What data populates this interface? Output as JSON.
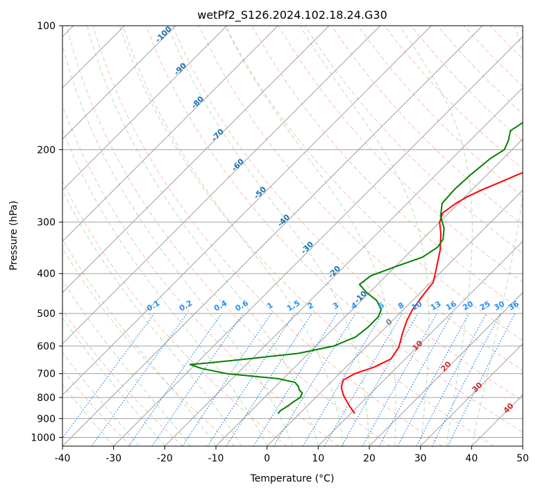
{
  "chart_data": {
    "type": "line",
    "title": "wetPf2_S126.2024.102.18.24.G30",
    "xlabel": "Temperature (°C)",
    "ylabel": "Pressure (hPa)",
    "xlim": [
      -40,
      50
    ],
    "ylim": [
      1050,
      100
    ],
    "y_scale": "log",
    "grid": true,
    "x_ticks": [
      -40,
      -30,
      -20,
      -10,
      0,
      10,
      20,
      30,
      40,
      50
    ],
    "y_ticks": [
      100,
      200,
      300,
      400,
      500,
      600,
      700,
      800,
      900,
      1000
    ],
    "series": [
      {
        "role": "temperature",
        "color": "#ff0000",
        "points": [
          [
            10.8,
            875
          ],
          [
            8.0,
            835
          ],
          [
            5.0,
            790
          ],
          [
            3.0,
            755
          ],
          [
            2.0,
            725
          ],
          [
            3.0,
            700
          ],
          [
            5.5,
            675
          ],
          [
            7.2,
            645
          ],
          [
            6.5,
            605
          ],
          [
            4.5,
            560
          ],
          [
            2.8,
            520
          ],
          [
            1.8,
            490
          ],
          [
            1.0,
            450
          ],
          [
            0.5,
            420
          ],
          [
            -1.5,
            390
          ],
          [
            -4.5,
            350
          ],
          [
            -7.5,
            320
          ],
          [
            -10.0,
            300
          ],
          [
            -11.2,
            285
          ],
          [
            -10.5,
            270
          ],
          [
            -9.5,
            260
          ],
          [
            -8.0,
            250
          ],
          [
            -6.0,
            240
          ],
          [
            -4.0,
            230
          ],
          [
            -1.5,
            220
          ],
          [
            1.0,
            210
          ],
          [
            3.5,
            200
          ],
          [
            6.0,
            190
          ],
          [
            9.5,
            180
          ],
          [
            13.5,
            170
          ],
          [
            16.8,
            160
          ],
          [
            18.5,
            150
          ],
          [
            20.0,
            140
          ],
          [
            21.8,
            130
          ],
          [
            25.0,
            120
          ],
          [
            26.8,
            110
          ],
          [
            28.0,
            100
          ]
        ]
      },
      {
        "role": "dewpoint",
        "color": "#008000",
        "points": [
          [
            -4.2,
            875
          ],
          [
            -4.3,
            860
          ],
          [
            -3.8,
            840
          ],
          [
            -3.5,
            820
          ],
          [
            -3.0,
            800
          ],
          [
            -3.5,
            780
          ],
          [
            -4.8,
            765
          ],
          [
            -5.5,
            752
          ],
          [
            -7.0,
            735
          ],
          [
            -11.0,
            720
          ],
          [
            -22.0,
            700
          ],
          [
            -28.0,
            680
          ],
          [
            -31.0,
            665
          ],
          [
            -28.0,
            660
          ],
          [
            -21.0,
            645
          ],
          [
            -12.0,
            625
          ],
          [
            -6.5,
            600
          ],
          [
            -4.0,
            570
          ],
          [
            -3.5,
            540
          ],
          [
            -3.5,
            510
          ],
          [
            -4.3,
            490
          ],
          [
            -7.0,
            465
          ],
          [
            -10.5,
            445
          ],
          [
            -13.5,
            425
          ],
          [
            -13.0,
            405
          ],
          [
            -10.0,
            385
          ],
          [
            -6.5,
            365
          ],
          [
            -5.5,
            345
          ],
          [
            -6.0,
            330
          ],
          [
            -8.0,
            310
          ],
          [
            -11.0,
            290
          ],
          [
            -13.2,
            270
          ],
          [
            -13.5,
            250
          ],
          [
            -13.2,
            230
          ],
          [
            -12.5,
            210
          ],
          [
            -11.5,
            200
          ],
          [
            -12.5,
            190
          ],
          [
            -14.0,
            180
          ],
          [
            -13.0,
            170
          ],
          [
            -11.0,
            160
          ],
          [
            -11.5,
            150
          ],
          [
            -13.0,
            140
          ],
          [
            -12.5,
            130
          ],
          [
            -10.5,
            120
          ],
          [
            -8.0,
            110
          ],
          [
            -5.0,
            100
          ]
        ]
      }
    ],
    "dry_adiabat_labels": [
      "-100",
      "-90",
      "-80",
      "-70",
      "-60",
      "-50",
      "-40",
      "-30",
      "-20",
      "-10"
    ],
    "mixing_ratio_labels": [
      "0.1",
      "0.2",
      "0.4",
      "0.6",
      "1",
      "1.5",
      "2",
      "3",
      "4",
      "6",
      "8",
      "10",
      "13",
      "16",
      "20",
      "25",
      "30",
      "36"
    ],
    "moist_adiabat_labels": [
      "0",
      "10",
      "20",
      "30",
      "40"
    ],
    "colors": {
      "isotherm": "#a0a0a0",
      "isobar": "#a0a0a0",
      "dry_adiabat": "#fa8060",
      "moist_adiabat": "#7fbf7f",
      "mixing_ratio": "#1e7fe6",
      "dry_adiabat_label": "#1a70b0",
      "mixing_ratio_label": "#1e90ff",
      "moist_adiabat_label": "#d62728",
      "zero_label": "#808080",
      "frame": "#000000"
    }
  }
}
